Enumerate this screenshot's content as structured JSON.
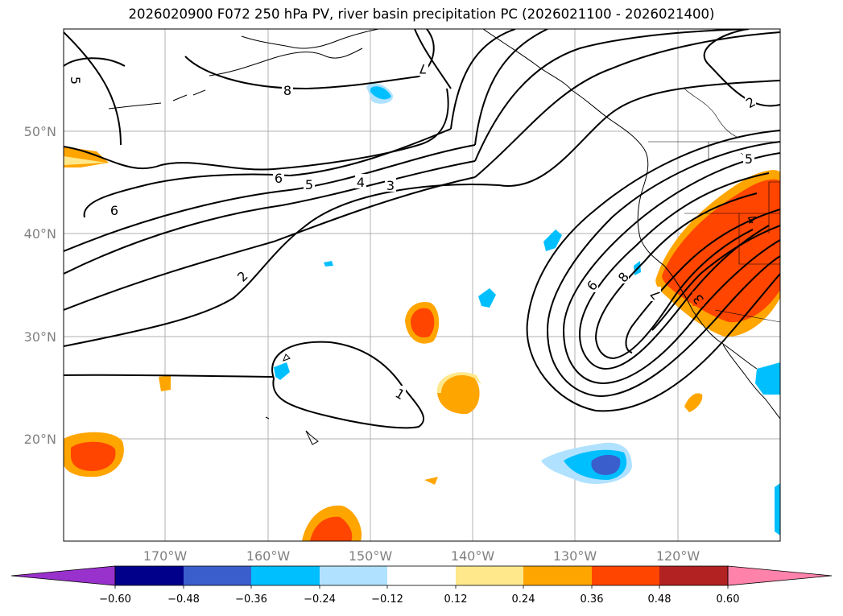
{
  "title": "2026020900 F072 250 hPa PV, river basin precipitation PC (2026021100 - 2026021400)",
  "map": {
    "lat_labels": [
      "50°N",
      "40°N",
      "30°N",
      "20°N"
    ],
    "lon_labels": [
      "170°W",
      "160°W",
      "150°W",
      "140°W",
      "130°W",
      "120°W"
    ],
    "contour_labels": {
      "c5_top_left": "5",
      "c8_top": "8",
      "c7_top": "7",
      "c2_top_right": "2",
      "c6_left": "6",
      "c6_mid": "6",
      "c5_mid": "5",
      "c4_mid": "4",
      "c3_mid": "3",
      "c2_mid": "2",
      "c1_low": "1",
      "c5_right": "5",
      "c6_trough": "6",
      "c8_trough": "8",
      "c7_trough": "7",
      "c3_trough": "3",
      "c4_coast": "4"
    }
  },
  "colorbar": {
    "ticks": [
      "−0.60",
      "−0.48",
      "−0.36",
      "−0.24",
      "−0.12",
      "0.12",
      "0.24",
      "0.36",
      "0.48",
      "0.60"
    ],
    "colors": {
      "under": "#9932cc",
      "neg_060": "#00008b",
      "neg_048": "#3a5fcd",
      "neg_036": "#00bfff",
      "neg_024": "#b0e2ff",
      "zero": "#ffffff",
      "pos_012": "#ffe88c",
      "pos_024": "#ffa500",
      "pos_036": "#ff4500",
      "pos_048": "#b22222",
      "over": "#ff82ab"
    }
  }
}
